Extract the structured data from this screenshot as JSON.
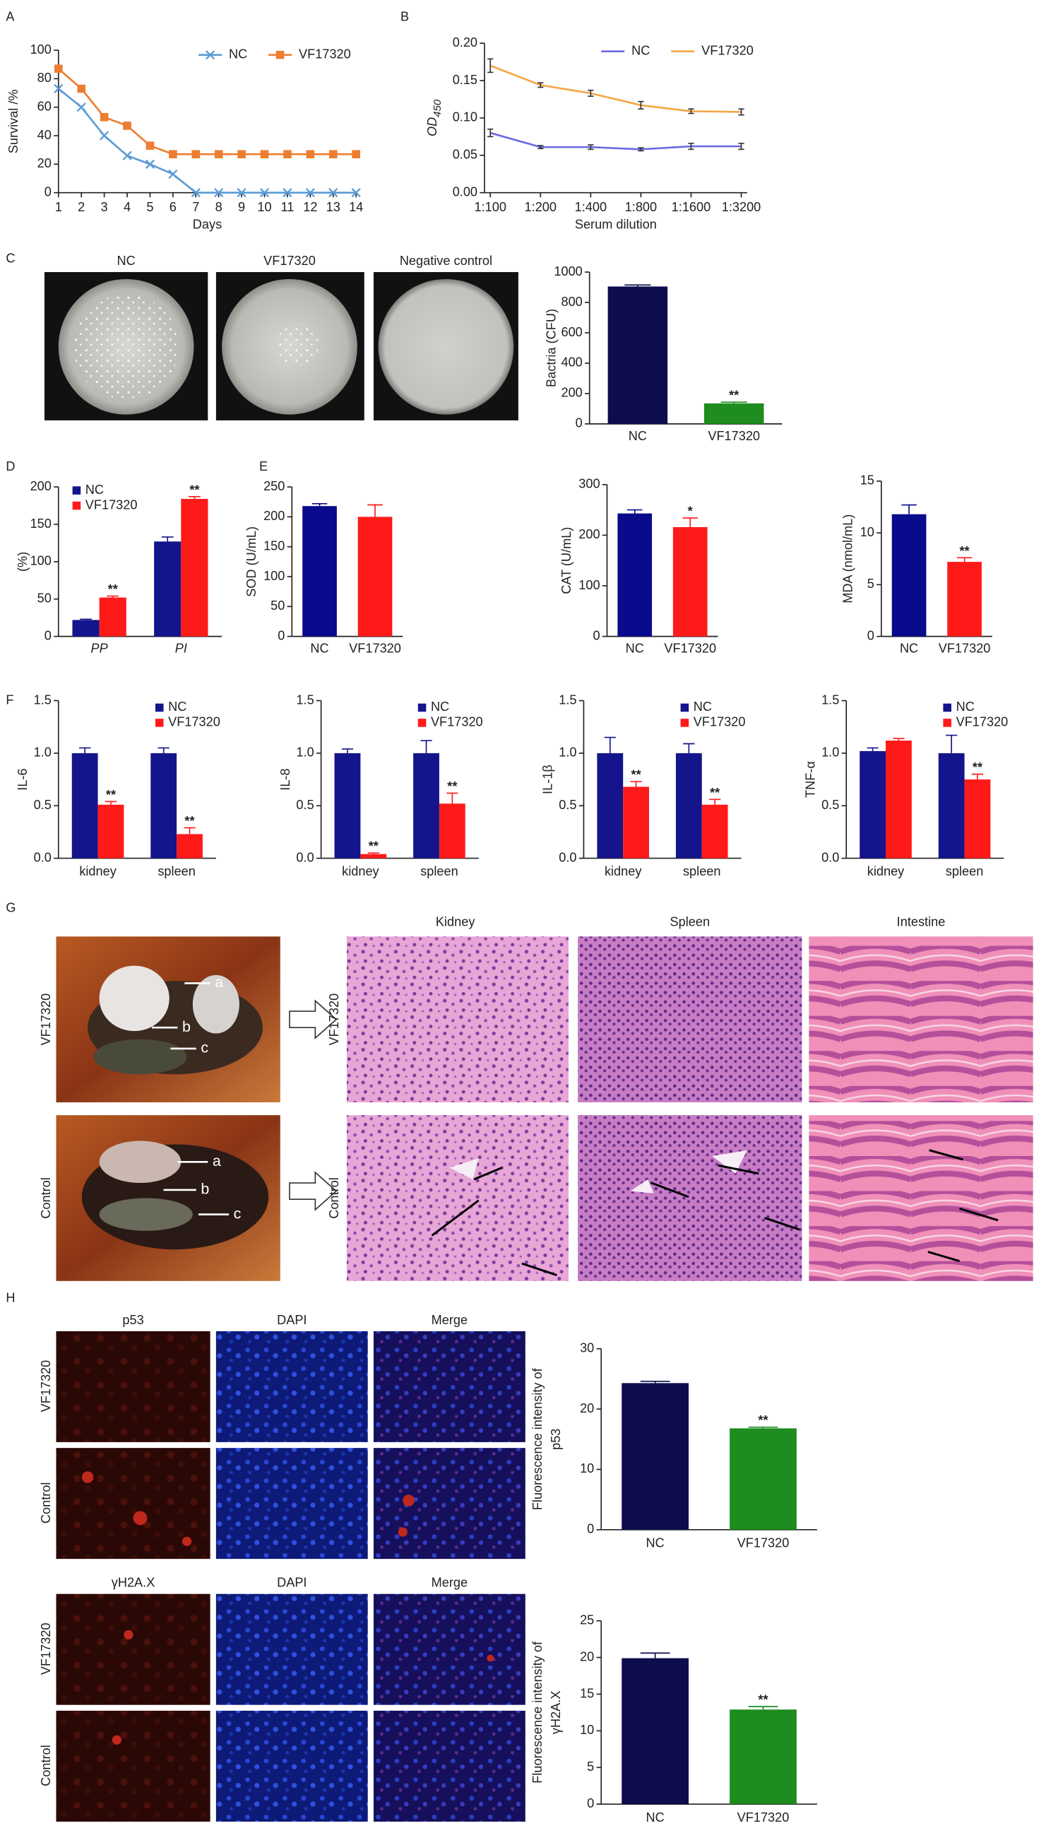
{
  "panel_labels": [
    "A",
    "B",
    "C",
    "D",
    "E",
    "F",
    "G",
    "H"
  ],
  "dish_labels": [
    "NC",
    "VF17320",
    "Negative control"
  ],
  "gross_row_labels": [
    "VF17320",
    "Control"
  ],
  "gross_arrow_labels": [
    [
      "a",
      "b",
      "c"
    ],
    [
      "a",
      "b",
      "c"
    ]
  ],
  "histology_column_labels": [
    "Kidney",
    "Spleen",
    "Intestine"
  ],
  "histology_row_labels": [
    "VF17320",
    "Control"
  ],
  "p53_column_labels": [
    "p53",
    "DAPI",
    "Merge"
  ],
  "p53_row_labels": [
    "VF17320",
    "Control"
  ],
  "h2ax_column_labels": [
    "γH2A.X",
    "DAPI",
    "Merge"
  ],
  "h2ax_row_labels": [
    "VF17320",
    "Control"
  ],
  "chart_data": [
    {
      "type": "line",
      "xlabel": "Days",
      "ylabel": "Survival /%",
      "x": [
        1,
        2,
        3,
        4,
        5,
        6,
        7,
        8,
        9,
        10,
        11,
        12,
        13,
        14
      ],
      "xlim": [
        1,
        14
      ],
      "xticks": [
        1,
        2,
        3,
        4,
        5,
        6,
        7,
        8,
        9,
        10,
        11,
        12,
        13,
        14
      ],
      "ylim": [
        0,
        100
      ],
      "yticks": [
        0,
        20,
        40,
        60,
        80,
        100
      ],
      "series": [
        {
          "name": "NC",
          "color": "#5b9bd5",
          "marker": "x",
          "values": [
            73,
            60,
            40,
            26,
            20,
            13,
            0,
            0,
            0,
            0,
            0,
            0,
            0,
            0
          ]
        },
        {
          "name": "VF17320",
          "color": "#ed7d31",
          "marker": "square",
          "values": [
            87,
            73,
            53,
            47,
            33,
            27,
            27,
            27,
            27,
            27,
            27,
            27,
            27,
            27
          ]
        }
      ]
    },
    {
      "type": "line",
      "xlabel": "Serum dilution",
      "ylabel": "OD",
      "ylabel_subscript": "450",
      "categories": [
        "1:100",
        "1:200",
        "1:400",
        "1:800",
        "1:1600",
        "1:3200"
      ],
      "ylim": [
        0,
        0.2
      ],
      "yticks": [
        {
          "value": 0,
          "label": "0.00"
        },
        {
          "value": 0.05,
          "label": "0.05"
        },
        {
          "value": 0.1,
          "label": "0.10"
        },
        {
          "value": 0.15,
          "label": "0.15"
        },
        {
          "value": 0.2,
          "label": "0.20"
        }
      ],
      "series": [
        {
          "name": "NC",
          "color": "#6b6be0",
          "values": [
            0.08,
            0.061,
            0.061,
            0.058,
            0.062,
            0.062
          ],
          "errors": [
            0.005,
            0.002,
            0.003,
            0.002,
            0.004,
            0.004
          ]
        },
        {
          "name": "VF17320",
          "color": "#f5a645",
          "values": [
            0.17,
            0.144,
            0.133,
            0.117,
            0.109,
            0.108
          ],
          "errors": [
            0.009,
            0.003,
            0.004,
            0.005,
            0.003,
            0.004
          ]
        }
      ]
    },
    {
      "type": "bar",
      "ylabel": "Bactria (CFU)",
      "categories": [
        "NC",
        "VF17320"
      ],
      "values": [
        905,
        135
      ],
      "errors": [
        10,
        8
      ],
      "colors": [
        "#0d0d4d",
        "#1e8c1e"
      ],
      "significance": [
        null,
        "**"
      ],
      "ylim": [
        0,
        1000
      ],
      "yticks": [
        0,
        200,
        400,
        600,
        800,
        1000
      ]
    },
    {
      "type": "bar",
      "ylabel": "(%)",
      "categories": [
        "PP",
        "PI"
      ],
      "ylim": [
        0,
        200
      ],
      "yticks": [
        0,
        50,
        100,
        150,
        200
      ],
      "series": [
        {
          "name": "NC",
          "color": "#14148c",
          "values": [
            22,
            127
          ],
          "errors": [
            1,
            6
          ]
        },
        {
          "name": "VF17320",
          "color": "#ff1a1a",
          "values": [
            52,
            184
          ],
          "errors": [
            2,
            3
          ],
          "significance": [
            "**",
            "**"
          ]
        }
      ]
    },
    {
      "type": "bar",
      "ylabel": "SOD (U/mL)",
      "categories": [
        "NC",
        "VF17320"
      ],
      "values": [
        218,
        200
      ],
      "errors": [
        4,
        20
      ],
      "colors": [
        "#0a0a8c",
        "#ff1a1a"
      ],
      "ylim": [
        0,
        250
      ],
      "yticks": [
        0,
        50,
        100,
        150,
        200,
        250
      ]
    },
    {
      "type": "bar",
      "ylabel": "CAT (U/mL)",
      "categories": [
        "NC",
        "VF17320"
      ],
      "values": [
        243,
        216
      ],
      "errors": [
        7,
        18
      ],
      "colors": [
        "#0a0a8c",
        "#ff1a1a"
      ],
      "significance": [
        null,
        "*"
      ],
      "ylim": [
        0,
        300
      ],
      "yticks": [
        0,
        100,
        200,
        300
      ]
    },
    {
      "type": "bar",
      "ylabel": "MDA (nmol/mL)",
      "categories": [
        "NC",
        "VF17320"
      ],
      "values": [
        11.8,
        7.2
      ],
      "errors": [
        0.9,
        0.4
      ],
      "colors": [
        "#0a0a8c",
        "#ff1a1a"
      ],
      "significance": [
        null,
        "**"
      ],
      "ylim": [
        0,
        15
      ],
      "yticks": [
        0,
        5,
        10,
        15
      ]
    },
    {
      "type": "bar",
      "ylabel": "IL-6",
      "categories": [
        "kidney",
        "spleen"
      ],
      "ylim": [
        0,
        1.5
      ],
      "yticks": [
        {
          "value": 0,
          "label": "0.0"
        },
        {
          "value": 0.5,
          "label": "0.5"
        },
        {
          "value": 1,
          "label": "1.0"
        },
        {
          "value": 1.5,
          "label": "1.5"
        }
      ],
      "series": [
        {
          "name": "NC",
          "color": "#14148c",
          "values": [
            1.0,
            1.0
          ],
          "errors": [
            0.05,
            0.05
          ]
        },
        {
          "name": "VF17320",
          "color": "#ff1a1a",
          "values": [
            0.51,
            0.23
          ],
          "errors": [
            0.03,
            0.06
          ],
          "significance": [
            "**",
            "**"
          ]
        }
      ]
    },
    {
      "type": "bar",
      "ylabel": "IL-8",
      "categories": [
        "kidney",
        "spleen"
      ],
      "ylim": [
        0,
        1.5
      ],
      "yticks": [
        {
          "value": 0,
          "label": "0.0"
        },
        {
          "value": 0.5,
          "label": "0.5"
        },
        {
          "value": 1,
          "label": "1.0"
        },
        {
          "value": 1.5,
          "label": "1.5"
        }
      ],
      "series": [
        {
          "name": "NC",
          "color": "#14148c",
          "values": [
            1.0,
            1.0
          ],
          "errors": [
            0.04,
            0.12
          ]
        },
        {
          "name": "VF17320",
          "color": "#ff1a1a",
          "values": [
            0.04,
            0.52
          ],
          "errors": [
            0.01,
            0.1
          ],
          "significance": [
            "**",
            "**"
          ]
        }
      ]
    },
    {
      "type": "bar",
      "ylabel": "IL-1β",
      "categories": [
        "kidney",
        "spleen"
      ],
      "ylim": [
        0,
        1.5
      ],
      "yticks": [
        {
          "value": 0,
          "label": "0.0"
        },
        {
          "value": 0.5,
          "label": "0.5"
        },
        {
          "value": 1,
          "label": "1.0"
        },
        {
          "value": 1.5,
          "label": "1.5"
        }
      ],
      "series": [
        {
          "name": "NC",
          "color": "#14148c",
          "values": [
            1.0,
            1.0
          ],
          "errors": [
            0.15,
            0.09
          ]
        },
        {
          "name": "VF17320",
          "color": "#ff1a1a",
          "values": [
            0.68,
            0.51
          ],
          "errors": [
            0.05,
            0.05
          ],
          "significance": [
            "**",
            "**"
          ]
        }
      ]
    },
    {
      "type": "bar",
      "ylabel": "TNF-α",
      "categories": [
        "kidney",
        "spleen"
      ],
      "ylim": [
        0,
        1.5
      ],
      "yticks": [
        {
          "value": 0,
          "label": "0.0"
        },
        {
          "value": 0.5,
          "label": "0.5"
        },
        {
          "value": 1,
          "label": "1.0"
        },
        {
          "value": 1.5,
          "label": "1.5"
        }
      ],
      "series": [
        {
          "name": "NC",
          "color": "#14148c",
          "values": [
            1.02,
            1.0
          ],
          "errors": [
            0.03,
            0.17
          ]
        },
        {
          "name": "VF17320",
          "color": "#ff1a1a",
          "values": [
            1.12,
            0.75
          ],
          "errors": [
            0.02,
            0.05
          ],
          "significance": [
            null,
            "**"
          ]
        }
      ]
    },
    {
      "type": "bar",
      "ylabel": [
        "Fluorescence intensity of",
        "p53"
      ],
      "categories": [
        "NC",
        "VF17320"
      ],
      "values": [
        24.3,
        16.8
      ],
      "errors": [
        0.3,
        0.2
      ],
      "colors": [
        "#0d0d4d",
        "#1e8c1e"
      ],
      "significance": [
        null,
        "**"
      ],
      "ylim": [
        0,
        30
      ],
      "yticks": [
        0,
        10,
        20,
        30
      ]
    },
    {
      "type": "bar",
      "ylabel": [
        "Fluorescence intensity of",
        "γH2A.X"
      ],
      "categories": [
        "NC",
        "VF17320"
      ],
      "values": [
        19.9,
        12.9
      ],
      "errors": [
        0.7,
        0.4
      ],
      "colors": [
        "#0d0d4d",
        "#1e8c1e"
      ],
      "significance": [
        null,
        "**"
      ],
      "ylim": [
        0,
        25
      ],
      "yticks": [
        0,
        5,
        10,
        15,
        20,
        25
      ]
    }
  ]
}
